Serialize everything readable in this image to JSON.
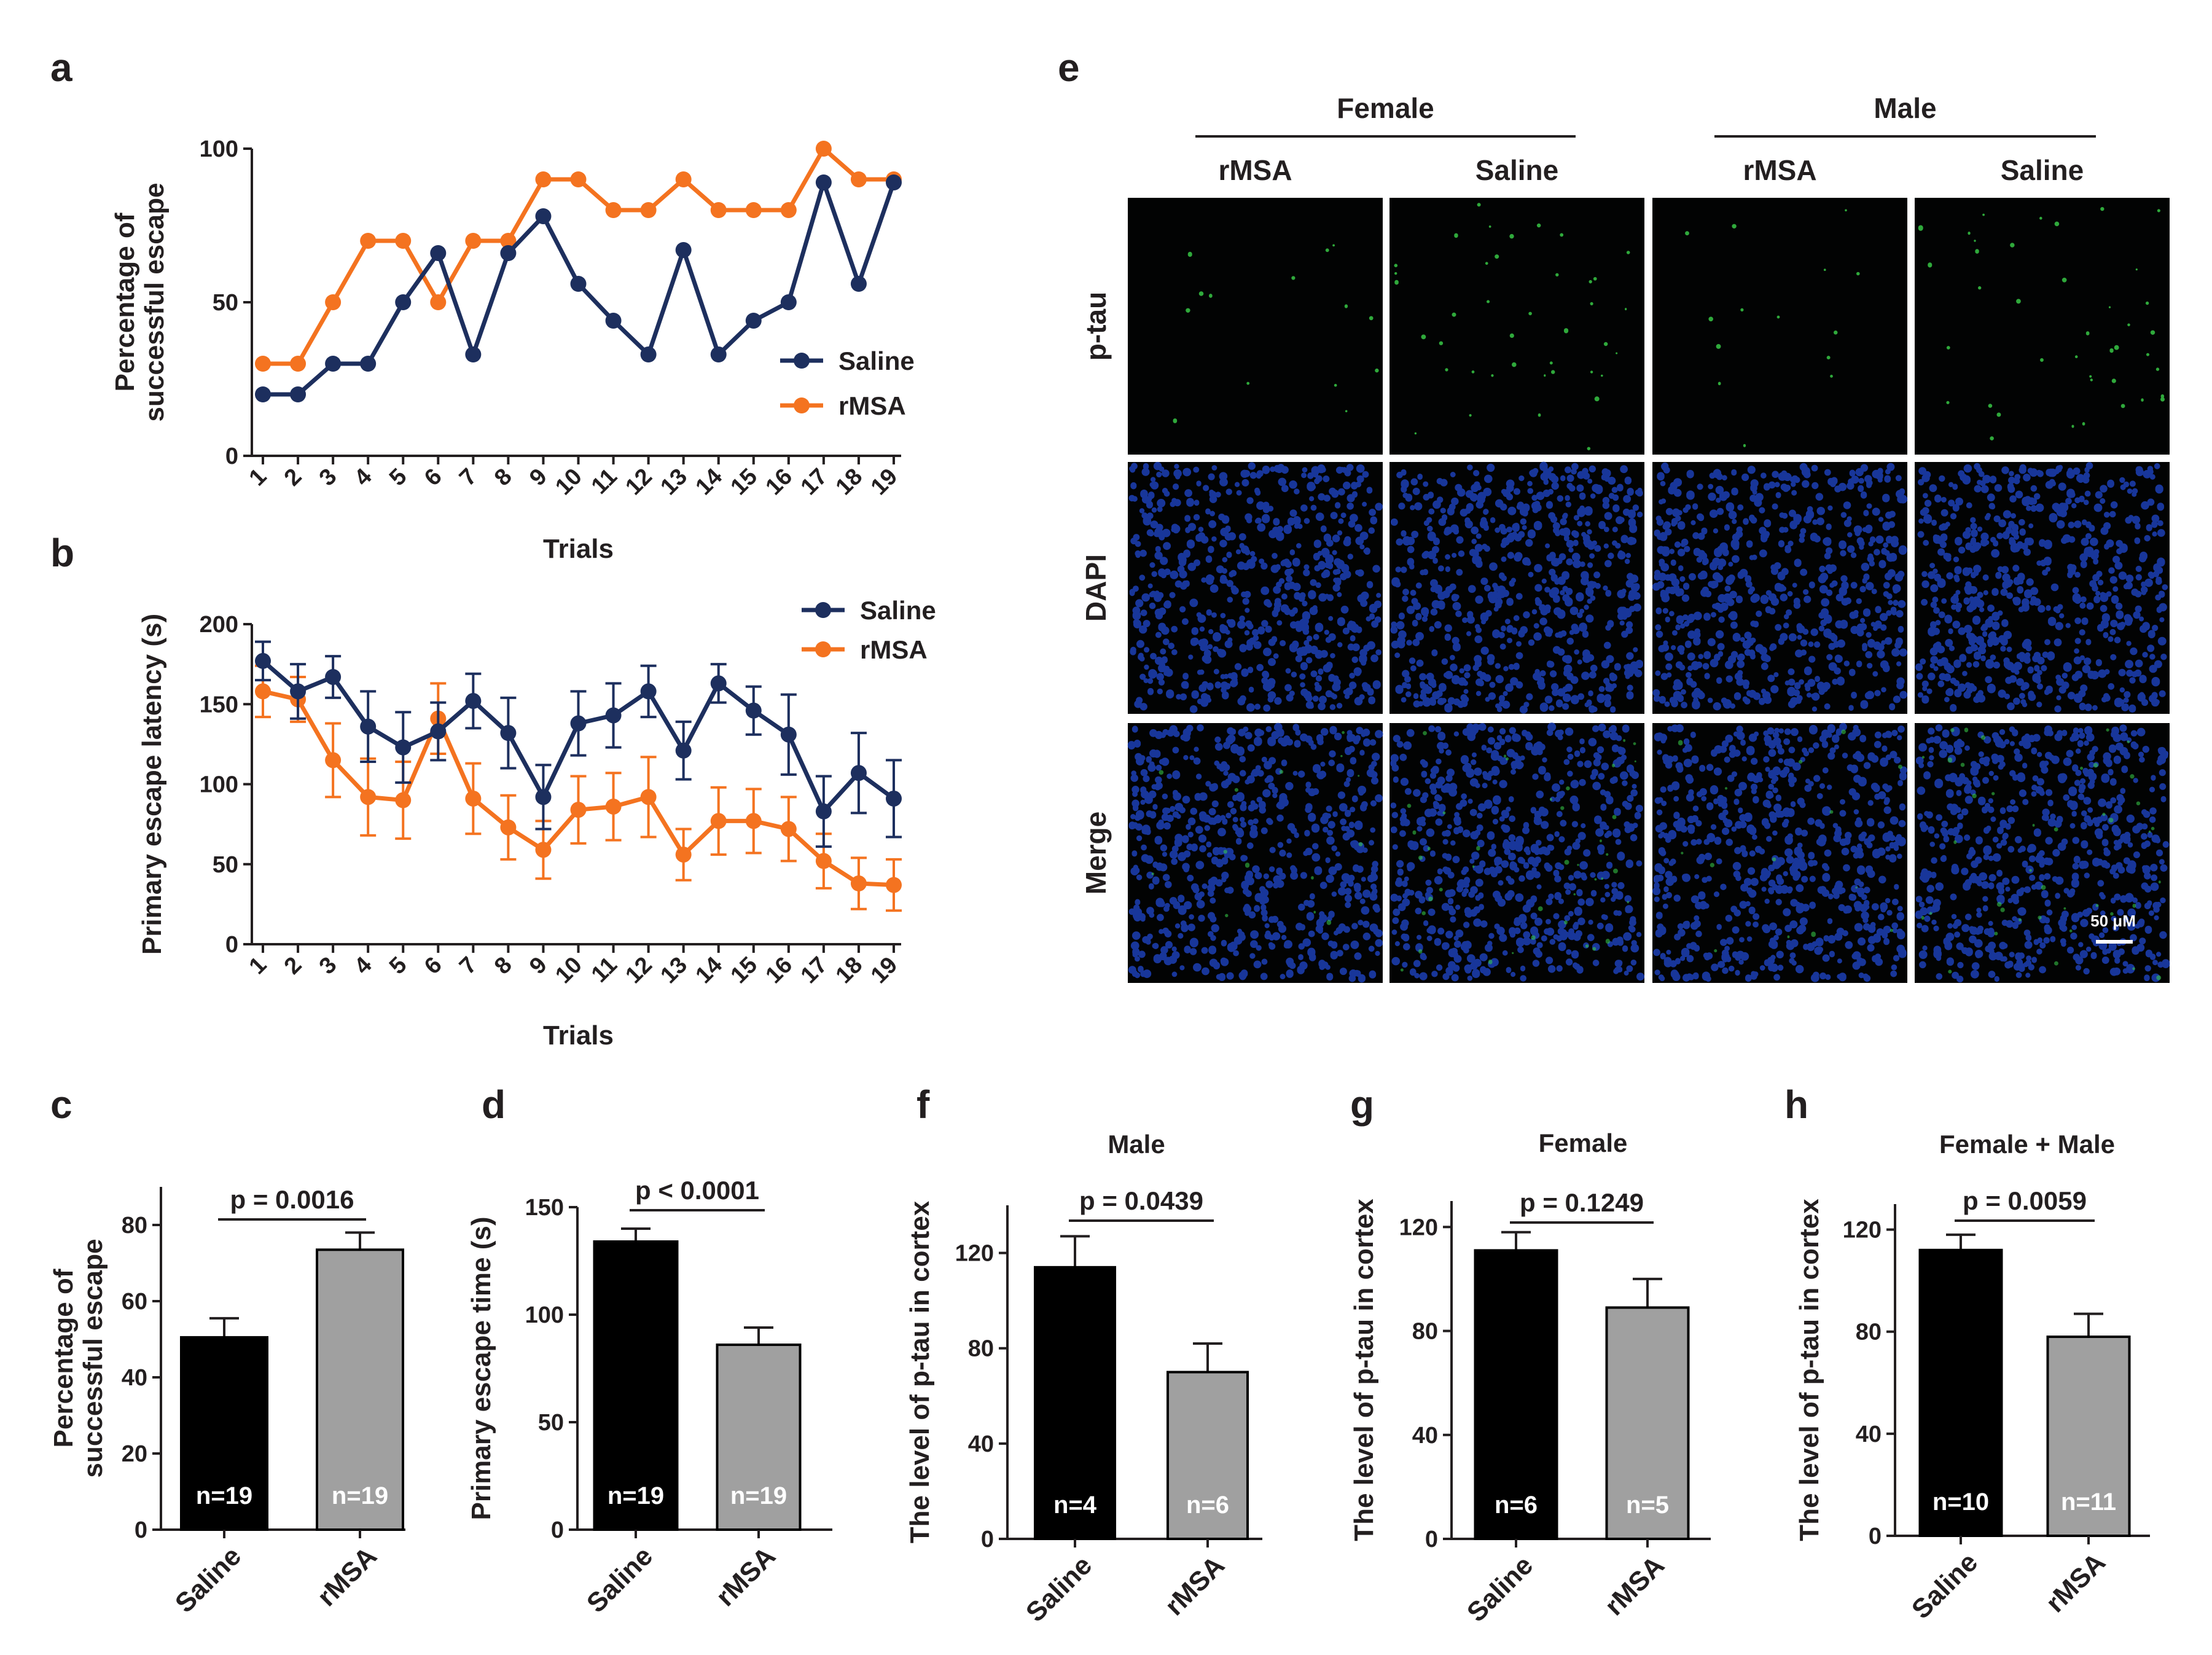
{
  "colors": {
    "saline_line": "#1d2f5e",
    "rmsa_line": "#f47320",
    "saline_bar": "#000000",
    "rmsa_bar": "#a0a0a0",
    "axis": "#231f20",
    "tissue_bg": "#020303",
    "nuclei": "#1c3fb5",
    "ptau": "#3bd34a"
  },
  "chart_data": [
    {
      "panel": "a",
      "type": "line",
      "xlabel": "Trials",
      "ylabel": [
        "Percentage of",
        "successful escape"
      ],
      "ylim": [
        0,
        100
      ],
      "yticks": [
        0,
        50,
        100
      ],
      "categories": [
        "1",
        "2",
        "3",
        "4",
        "5",
        "6",
        "7",
        "8",
        "9",
        "10",
        "11",
        "12",
        "13",
        "14",
        "15",
        "16",
        "17",
        "18",
        "19"
      ],
      "series": [
        {
          "name": "Saline",
          "color_key": "saline_line",
          "values": [
            20,
            20,
            30,
            30,
            50,
            66,
            33,
            66,
            78,
            56,
            44,
            33,
            67,
            33,
            44,
            50,
            89,
            56,
            89
          ]
        },
        {
          "name": "rMSA",
          "color_key": "rmsa_line",
          "values": [
            30,
            30,
            50,
            70,
            70,
            50,
            70,
            70,
            90,
            90,
            80,
            80,
            90,
            80,
            80,
            80,
            100,
            90,
            90
          ]
        }
      ],
      "legend": "right"
    },
    {
      "panel": "b",
      "type": "line",
      "xlabel": "Trials",
      "ylabel": [
        "Primary escape latency (s)"
      ],
      "ylim": [
        0,
        200
      ],
      "yticks": [
        0,
        50,
        100,
        150,
        200
      ],
      "categories": [
        "1",
        "2",
        "3",
        "4",
        "5",
        "6",
        "7",
        "8",
        "9",
        "10",
        "11",
        "12",
        "13",
        "14",
        "15",
        "16",
        "17",
        "18",
        "19"
      ],
      "series": [
        {
          "name": "Saline",
          "color_key": "saline_line",
          "values": [
            177,
            158,
            167,
            136,
            123,
            133,
            152,
            132,
            92,
            138,
            143,
            158,
            121,
            163,
            146,
            131,
            83,
            107,
            91
          ],
          "errors": [
            12,
            17,
            13,
            22,
            22,
            18,
            17,
            22,
            20,
            20,
            20,
            16,
            18,
            12,
            15,
            25,
            22,
            25,
            24
          ]
        },
        {
          "name": "rMSA",
          "color_key": "rmsa_line",
          "values": [
            158,
            153,
            115,
            92,
            90,
            141,
            91,
            73,
            59,
            84,
            86,
            92,
            56,
            77,
            77,
            72,
            52,
            38,
            37
          ],
          "errors": [
            16,
            14,
            23,
            24,
            24,
            22,
            22,
            20,
            18,
            21,
            21,
            25,
            16,
            21,
            20,
            20,
            17,
            16,
            16
          ]
        }
      ],
      "legend": "top-right"
    },
    {
      "panel": "c",
      "type": "bar",
      "ylabel": [
        "Percentage of",
        "successful escape"
      ],
      "ylim": [
        0,
        90
      ],
      "yticks": [
        0,
        20,
        40,
        60,
        80
      ],
      "categories": [
        "Saline",
        "rMSA"
      ],
      "values": [
        50.5,
        73.5
      ],
      "errors": [
        5,
        4.5
      ],
      "n_labels": [
        "n=19",
        "n=19"
      ],
      "p_value": "p = 0.0016"
    },
    {
      "panel": "d",
      "type": "bar",
      "ylabel": [
        "Primary escape time (s)"
      ],
      "ylim": [
        0,
        150
      ],
      "yticks": [
        0,
        50,
        100,
        150
      ],
      "categories": [
        "Saline",
        "rMSA"
      ],
      "values": [
        134,
        86
      ],
      "errors": [
        6,
        8
      ],
      "n_labels": [
        "n=19",
        "n=19"
      ],
      "p_value": "p < 0.0001"
    },
    {
      "panel": "f",
      "type": "bar",
      "title": "Male",
      "ylabel": [
        "The level of p-tau in cortex"
      ],
      "ylim": [
        0,
        140
      ],
      "yticks": [
        0,
        40,
        80,
        120
      ],
      "categories": [
        "Saline",
        "rMSA"
      ],
      "values": [
        114,
        70
      ],
      "errors": [
        13,
        12
      ],
      "n_labels": [
        "n=4",
        "n=6"
      ],
      "p_value": "p = 0.0439"
    },
    {
      "panel": "g",
      "type": "bar",
      "title": "Female",
      "ylabel": [
        "The level of p-tau in cortex"
      ],
      "ylim": [
        0,
        130
      ],
      "yticks": [
        0,
        40,
        80,
        120
      ],
      "categories": [
        "Saline",
        "rMSA"
      ],
      "values": [
        111,
        89
      ],
      "errors": [
        7,
        11
      ],
      "n_labels": [
        "n=6",
        "n=5"
      ],
      "p_value": "p = 0.1249"
    },
    {
      "panel": "h",
      "type": "bar",
      "title": "Female + Male",
      "ylabel": [
        "The level of p-tau in cortex"
      ],
      "ylim": [
        0,
        130
      ],
      "yticks": [
        0,
        40,
        80,
        120
      ],
      "categories": [
        "Saline",
        "rMSA"
      ],
      "values": [
        112,
        78
      ],
      "errors": [
        6,
        9
      ],
      "n_labels": [
        "n=10",
        "n=11"
      ],
      "p_value": "p = 0.0059"
    }
  ],
  "panel_e": {
    "letter": "e",
    "groups": [
      "Female",
      "Male"
    ],
    "columns": [
      "rMSA",
      "Saline",
      "rMSA",
      "Saline"
    ],
    "rows": [
      "p-tau",
      "DAPI",
      "Merge"
    ],
    "scale_bar": "50 μM"
  }
}
